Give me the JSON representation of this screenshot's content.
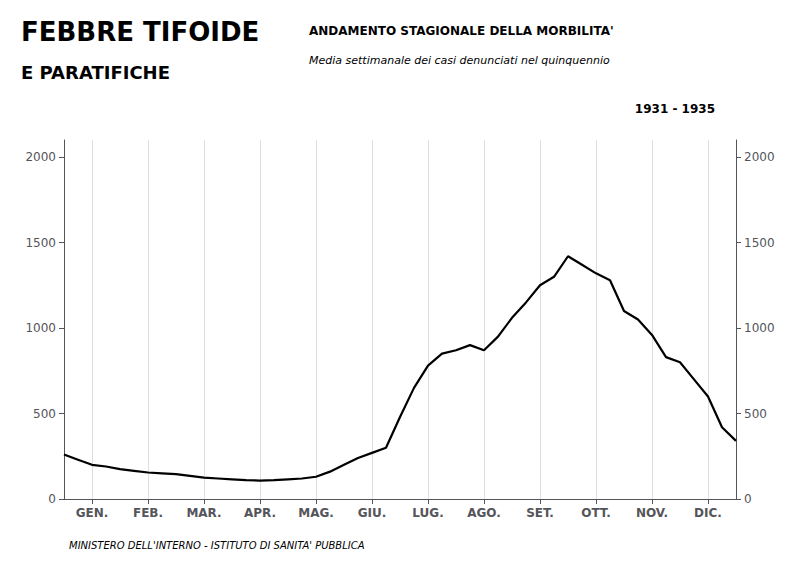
{
  "chart_data": {
    "type": "line",
    "title": "FEBBRE TIFOIDE",
    "subtitle": "E PARATIFICHE",
    "annotations": [
      "ANDAMENTO STAGIONALE DELLA MORBILITA'",
      "Media settimanale dei casi denunciati nel quinquennio",
      "1931 - 1935",
      "MINISTERO DELL'INTERNO - ISTITUTO DI SANITA' PUBBLICA"
    ],
    "x": [
      0,
      0.25,
      0.5,
      0.75,
      1.0,
      1.25,
      1.5,
      1.75,
      2.0,
      2.25,
      2.5,
      2.75,
      3.0,
      3.25,
      3.5,
      3.75,
      4.0,
      4.25,
      4.5,
      4.75,
      5.0,
      5.25,
      5.5,
      5.75,
      6.0,
      6.25,
      6.5,
      6.75,
      7.0,
      7.25,
      7.5,
      7.75,
      8.0,
      8.25,
      8.5,
      8.75,
      9.0,
      9.25,
      9.5,
      9.75,
      10.0,
      10.25,
      10.5,
      10.75,
      11.0,
      11.25,
      11.5,
      11.75,
      12.0
    ],
    "values": [
      260,
      230,
      200,
      190,
      175,
      165,
      155,
      150,
      145,
      135,
      125,
      120,
      115,
      110,
      108,
      110,
      115,
      120,
      130,
      160,
      200,
      240,
      270,
      300,
      480,
      650,
      780,
      850,
      870,
      900,
      870,
      950,
      1060,
      1150,
      1250,
      1300,
      1420,
      1370,
      1320,
      1280,
      1100,
      1050,
      960,
      830,
      800,
      700,
      600,
      420,
      340
    ],
    "color": "#000000",
    "xlim": [
      0,
      12
    ],
    "xticks": [
      {
        "value": 0.5,
        "label": "GEN."
      },
      {
        "value": 1.5,
        "label": "FEB."
      },
      {
        "value": 2.5,
        "label": "MAR."
      },
      {
        "value": 3.5,
        "label": "APR."
      },
      {
        "value": 4.5,
        "label": "MAG."
      },
      {
        "value": 5.5,
        "label": "GIU."
      },
      {
        "value": 6.5,
        "label": "LUG."
      },
      {
        "value": 7.5,
        "label": "AGO."
      },
      {
        "value": 8.5,
        "label": "SET."
      },
      {
        "value": 9.5,
        "label": "OTT."
      },
      {
        "value": 10.5,
        "label": "NOV."
      },
      {
        "value": 11.5,
        "label": "DIC."
      }
    ],
    "ylim": [
      0,
      2100
    ],
    "yticks": [
      0,
      500,
      1000,
      1500,
      2000
    ],
    "y2lim": [
      0,
      2100
    ],
    "y2ticks": [
      0,
      500,
      1000,
      1500,
      2000
    ],
    "grid": true
  }
}
